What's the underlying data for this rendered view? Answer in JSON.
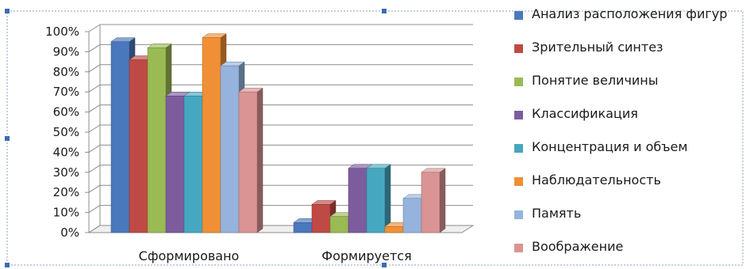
{
  "chart_data": {
    "type": "bar",
    "categories": [
      "Сформировано",
      "Формируется"
    ],
    "series": [
      {
        "name": "Анализ расположения фигур",
        "values": [
          95,
          5
        ],
        "color": "#4a78bd"
      },
      {
        "name": "Зрительный синтез",
        "values": [
          86,
          14
        ],
        "color": "#bf4a45"
      },
      {
        "name": "Понятие величины",
        "values": [
          92,
          8
        ],
        "color": "#9aba53"
      },
      {
        "name": "Классификация",
        "values": [
          68,
          32
        ],
        "color": "#7d5c9e"
      },
      {
        "name": "Концентрация и объем",
        "values": [
          68,
          32
        ],
        "color": "#46a7c0"
      },
      {
        "name": "Наблюдательность",
        "values": [
          97,
          3
        ],
        "color": "#f08f35"
      },
      {
        "name": "Память",
        "values": [
          83,
          17
        ],
        "color": "#95b3dc"
      },
      {
        "name": "Воображение",
        "values": [
          70,
          30
        ],
        "color": "#d99493"
      }
    ],
    "yticks": [
      "0%",
      "10%",
      "20%",
      "30%",
      "40%",
      "50%",
      "60%",
      "70%",
      "80%",
      "90%",
      "100%"
    ],
    "ylim": [
      0,
      100
    ],
    "grid": true,
    "legend": "right",
    "title": "",
    "xlabel": "",
    "ylabel": ""
  }
}
